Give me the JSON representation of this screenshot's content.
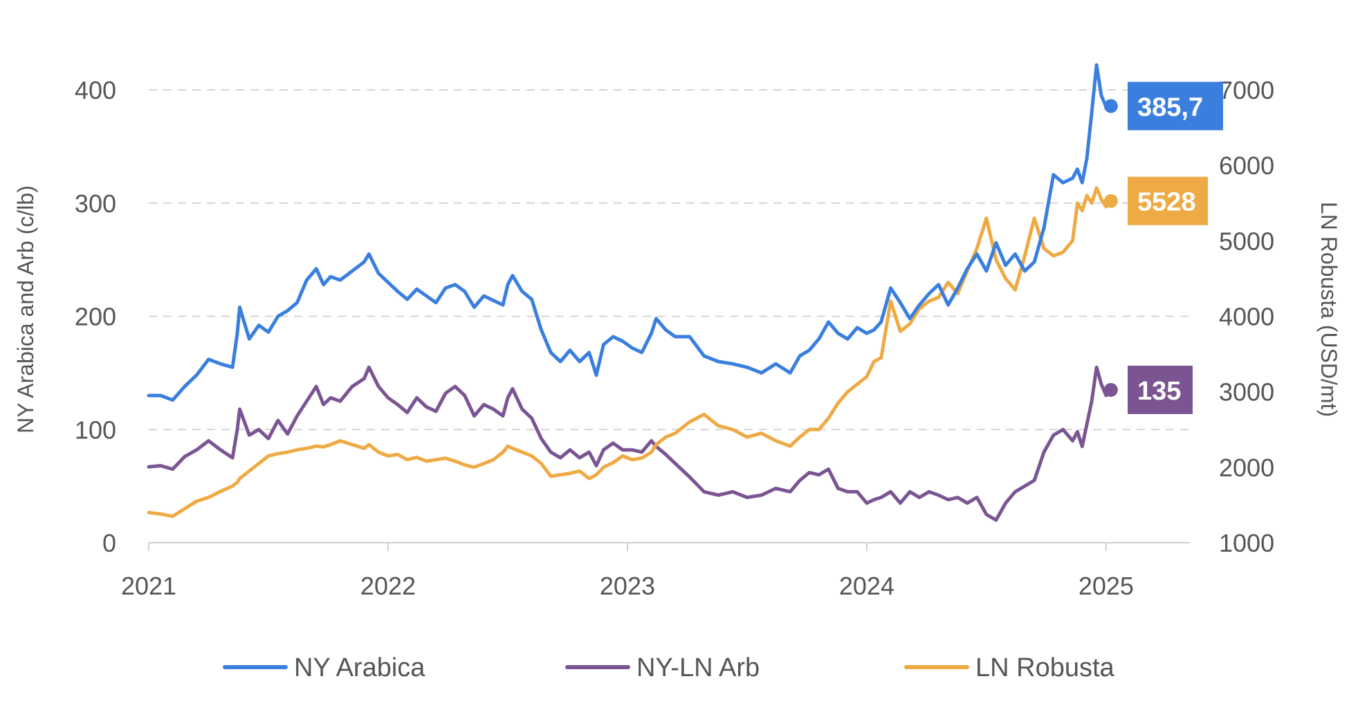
{
  "chart_data": {
    "type": "line",
    "title": "",
    "xlabel": "",
    "ylabel": "NY Arabica and Arb (c/lb)",
    "y2label": "LN Robusta (USD/mt)",
    "xlim": [
      2021.0,
      2025.35
    ],
    "ylim": [
      0,
      400
    ],
    "y2lim": [
      1000,
      7000
    ],
    "x_ticks": [
      2021,
      2022,
      2023,
      2024,
      2025
    ],
    "x_tick_labels": [
      "2021",
      "2022",
      "2023",
      "2024",
      "2025"
    ],
    "y_ticks": [
      0,
      100,
      200,
      300,
      400
    ],
    "y_tick_labels": [
      "0",
      "100",
      "200",
      "300",
      "400"
    ],
    "y2_ticks": [
      1000,
      2000,
      3000,
      4000,
      5000,
      6000,
      7000
    ],
    "y2_tick_labels": [
      "1000",
      "2000",
      "3000",
      "4000",
      "5000",
      "6000",
      "7000"
    ],
    "grid": "horizontal dashed",
    "legend_position": "bottom",
    "series": [
      {
        "name": "NY Arabica",
        "axis": "left",
        "color": "#3a7fde",
        "end_label": "385,7",
        "x": [
          2021.0,
          2021.05,
          2021.1,
          2021.15,
          2021.2,
          2021.25,
          2021.3,
          2021.35,
          2021.37,
          2021.38,
          2021.42,
          2021.46,
          2021.5,
          2021.54,
          2021.58,
          2021.62,
          2021.66,
          2021.7,
          2021.73,
          2021.76,
          2021.8,
          2021.85,
          2021.9,
          2021.92,
          2021.96,
          2022.0,
          2022.04,
          2022.08,
          2022.12,
          2022.16,
          2022.2,
          2022.24,
          2022.28,
          2022.32,
          2022.36,
          2022.4,
          2022.44,
          2022.48,
          2022.5,
          2022.52,
          2022.56,
          2022.6,
          2022.64,
          2022.68,
          2022.72,
          2022.76,
          2022.8,
          2022.84,
          2022.87,
          2022.9,
          2022.94,
          2022.98,
          2023.02,
          2023.06,
          2023.1,
          2023.12,
          2023.16,
          2023.2,
          2023.26,
          2023.32,
          2023.38,
          2023.44,
          2023.5,
          2023.56,
          2023.62,
          2023.68,
          2023.72,
          2023.76,
          2023.8,
          2023.84,
          2023.88,
          2023.92,
          2023.96,
          2024.0,
          2024.03,
          2024.06,
          2024.1,
          2024.14,
          2024.18,
          2024.22,
          2024.26,
          2024.3,
          2024.34,
          2024.38,
          2024.42,
          2024.46,
          2024.5,
          2024.54,
          2024.58,
          2024.62,
          2024.66,
          2024.7,
          2024.74,
          2024.78,
          2024.82,
          2024.86,
          2024.88,
          2024.9,
          2024.92,
          2024.94,
          2024.96,
          2024.98,
          2025.0,
          2025.02
        ],
        "values": [
          130,
          130,
          126,
          138,
          148,
          162,
          158,
          155,
          185,
          208,
          180,
          192,
          186,
          200,
          205,
          212,
          232,
          242,
          228,
          235,
          232,
          240,
          248,
          255,
          238,
          230,
          222,
          215,
          224,
          218,
          212,
          225,
          228,
          222,
          208,
          218,
          214,
          210,
          228,
          236,
          222,
          215,
          188,
          168,
          160,
          170,
          160,
          168,
          148,
          175,
          182,
          178,
          172,
          168,
          185,
          198,
          188,
          182,
          182,
          165,
          160,
          158,
          155,
          150,
          158,
          150,
          165,
          170,
          180,
          195,
          185,
          180,
          190,
          185,
          188,
          195,
          225,
          212,
          198,
          210,
          220,
          228,
          210,
          225,
          242,
          255,
          240,
          265,
          245,
          255,
          240,
          248,
          278,
          325,
          318,
          322,
          330,
          318,
          340,
          380,
          422,
          395,
          385,
          385.7
        ]
      },
      {
        "name": "NY-LN Arb",
        "axis": "left",
        "color": "#7a5592",
        "end_label": "135",
        "x": [
          2021.0,
          2021.05,
          2021.1,
          2021.15,
          2021.2,
          2021.25,
          2021.3,
          2021.35,
          2021.37,
          2021.38,
          2021.42,
          2021.46,
          2021.5,
          2021.54,
          2021.58,
          2021.62,
          2021.66,
          2021.7,
          2021.73,
          2021.76,
          2021.8,
          2021.85,
          2021.9,
          2021.92,
          2021.96,
          2022.0,
          2022.04,
          2022.08,
          2022.12,
          2022.16,
          2022.2,
          2022.24,
          2022.28,
          2022.32,
          2022.36,
          2022.4,
          2022.44,
          2022.48,
          2022.5,
          2022.52,
          2022.56,
          2022.6,
          2022.64,
          2022.68,
          2022.72,
          2022.76,
          2022.8,
          2022.84,
          2022.87,
          2022.9,
          2022.94,
          2022.98,
          2023.02,
          2023.06,
          2023.1,
          2023.12,
          2023.16,
          2023.2,
          2023.26,
          2023.32,
          2023.38,
          2023.44,
          2023.5,
          2023.56,
          2023.62,
          2023.68,
          2023.72,
          2023.76,
          2023.8,
          2023.84,
          2023.88,
          2023.92,
          2023.96,
          2024.0,
          2024.03,
          2024.06,
          2024.1,
          2024.14,
          2024.18,
          2024.22,
          2024.26,
          2024.3,
          2024.34,
          2024.38,
          2024.42,
          2024.46,
          2024.5,
          2024.54,
          2024.58,
          2024.62,
          2024.66,
          2024.7,
          2024.74,
          2024.78,
          2024.82,
          2024.86,
          2024.88,
          2024.9,
          2024.92,
          2024.94,
          2024.96,
          2024.98,
          2025.0,
          2025.02
        ],
        "values": [
          67,
          68,
          65,
          76,
          82,
          90,
          82,
          75,
          100,
          118,
          95,
          100,
          92,
          108,
          96,
          112,
          125,
          138,
          122,
          128,
          125,
          138,
          145,
          155,
          138,
          128,
          122,
          115,
          128,
          120,
          116,
          132,
          138,
          130,
          112,
          122,
          118,
          112,
          128,
          136,
          118,
          110,
          92,
          80,
          75,
          82,
          75,
          80,
          68,
          82,
          88,
          82,
          82,
          80,
          90,
          85,
          78,
          70,
          58,
          45,
          42,
          45,
          40,
          42,
          48,
          45,
          55,
          62,
          60,
          65,
          48,
          45,
          45,
          35,
          38,
          40,
          45,
          35,
          45,
          40,
          45,
          42,
          38,
          40,
          35,
          40,
          25,
          20,
          35,
          45,
          50,
          55,
          80,
          95,
          100,
          90,
          98,
          85,
          105,
          125,
          155,
          140,
          130,
          135
        ]
      },
      {
        "name": "LN Robusta",
        "axis": "right",
        "color": "#eeaa44",
        "end_label": "5528",
        "x": [
          2021.0,
          2021.05,
          2021.1,
          2021.15,
          2021.2,
          2021.25,
          2021.3,
          2021.35,
          2021.37,
          2021.38,
          2021.42,
          2021.46,
          2021.5,
          2021.54,
          2021.58,
          2021.62,
          2021.66,
          2021.7,
          2021.73,
          2021.76,
          2021.8,
          2021.85,
          2021.9,
          2021.92,
          2021.96,
          2022.0,
          2022.04,
          2022.08,
          2022.12,
          2022.16,
          2022.2,
          2022.24,
          2022.28,
          2022.32,
          2022.36,
          2022.4,
          2022.44,
          2022.48,
          2022.5,
          2022.52,
          2022.56,
          2022.6,
          2022.64,
          2022.68,
          2022.72,
          2022.76,
          2022.8,
          2022.84,
          2022.87,
          2022.9,
          2022.94,
          2022.98,
          2023.02,
          2023.06,
          2023.1,
          2023.12,
          2023.16,
          2023.2,
          2023.26,
          2023.32,
          2023.38,
          2023.44,
          2023.5,
          2023.56,
          2023.62,
          2023.68,
          2023.72,
          2023.76,
          2023.8,
          2023.84,
          2023.88,
          2023.92,
          2023.96,
          2024.0,
          2024.03,
          2024.06,
          2024.1,
          2024.14,
          2024.18,
          2024.22,
          2024.26,
          2024.3,
          2024.34,
          2024.38,
          2024.42,
          2024.46,
          2024.5,
          2024.54,
          2024.58,
          2024.62,
          2024.66,
          2024.7,
          2024.74,
          2024.78,
          2024.82,
          2024.86,
          2024.88,
          2024.9,
          2024.92,
          2024.94,
          2024.96,
          2024.98,
          2025.0,
          2025.02
        ],
        "values": [
          1400,
          1380,
          1350,
          1450,
          1550,
          1600,
          1680,
          1750,
          1800,
          1850,
          1950,
          2050,
          2150,
          2180,
          2200,
          2230,
          2250,
          2280,
          2270,
          2300,
          2350,
          2300,
          2250,
          2300,
          2200,
          2150,
          2170,
          2100,
          2130,
          2080,
          2100,
          2120,
          2080,
          2030,
          2000,
          2050,
          2100,
          2200,
          2280,
          2250,
          2200,
          2150,
          2050,
          1880,
          1900,
          1920,
          1950,
          1850,
          1900,
          2000,
          2060,
          2150,
          2100,
          2120,
          2200,
          2300,
          2400,
          2450,
          2600,
          2700,
          2550,
          2500,
          2400,
          2450,
          2350,
          2280,
          2400,
          2500,
          2500,
          2650,
          2850,
          3000,
          3100,
          3200,
          3400,
          3450,
          4200,
          3800,
          3900,
          4100,
          4200,
          4250,
          4450,
          4300,
          4600,
          4900,
          5300,
          4750,
          4500,
          4350,
          4800,
          5300,
          4900,
          4800,
          4850,
          5000,
          5500,
          5400,
          5600,
          5500,
          5700,
          5550,
          5450,
          5528
        ]
      }
    ]
  },
  "legend": [
    {
      "label": "NY Arabica",
      "color": "#3a7fde"
    },
    {
      "label": "NY-LN Arb",
      "color": "#7a5592"
    },
    {
      "label": "LN Robusta",
      "color": "#eeaa44"
    }
  ]
}
